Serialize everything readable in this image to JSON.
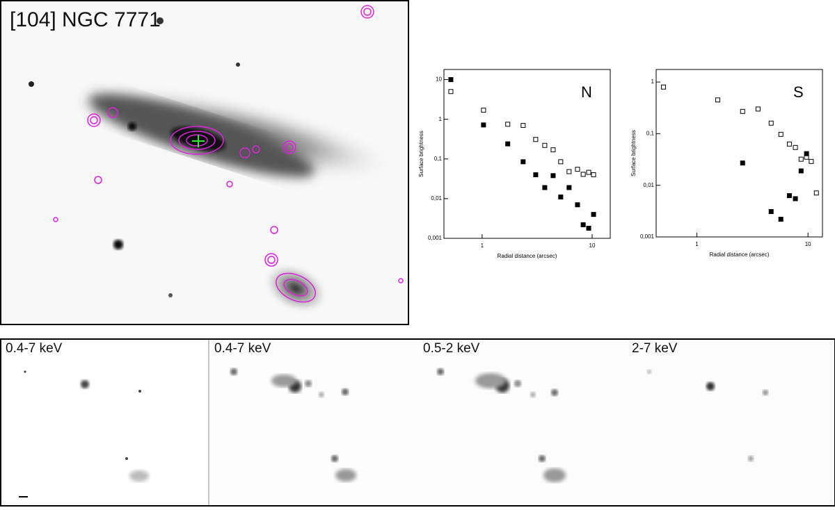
{
  "optical_image": {
    "title": "[104] NGC 7771"
  },
  "xray_panels": [
    {
      "label": "0.4-7 keV"
    },
    {
      "label": "0.4-7 keV"
    },
    {
      "label": "0.5-2 keV"
    },
    {
      "label": "2-7 keV"
    }
  ],
  "chart_data": [
    {
      "type": "scatter",
      "annotation": "N",
      "x_label": "Radial distance (arcsec)",
      "y_label": "Surface brightness",
      "xscale": "log",
      "yscale": "log",
      "xlim": [
        0.45,
        14.6
      ],
      "ylim": [
        0.001,
        18
      ],
      "xticks": [
        1,
        10
      ],
      "yticks": [
        10,
        1,
        {
          "value": 0.1,
          "label": "0,1"
        },
        {
          "value": 0.01,
          "label": "0,01"
        },
        {
          "value": 0.001,
          "label": "0,001"
        }
      ],
      "series": [
        {
          "color": "#000000",
          "filled": false,
          "x": [
            0.52,
            1.03,
            1.71,
            2.36,
            3.07,
            3.71,
            4.42,
            5.18,
            6.17,
            7.36,
            8.29,
            9.3,
            10.3
          ],
          "values": [
            5,
            1.7,
            0.75,
            0.7,
            0.31,
            0.22,
            0.17,
            0.085,
            0.048,
            0.055,
            0.041,
            0.046,
            0.04
          ]
        },
        {
          "color": "#000000",
          "filled": true,
          "x": [
            0.52,
            1.03,
            1.71,
            2.36,
            3.07,
            3.71,
            4.42,
            5.18,
            6.17,
            7.36,
            8.29,
            9.3,
            10.3
          ],
          "values": [
            10,
            0.72,
            0.24,
            0.085,
            0.04,
            0.019,
            0.038,
            0.011,
            0.019,
            0.007,
            0.0022,
            0.0018,
            0.004
          ]
        }
      ]
    },
    {
      "type": "scatter",
      "annotation": "S",
      "x_label": "Radial distance (arcsec)",
      "y_label": "Surface brightness",
      "xscale": "log",
      "yscale": "log",
      "xlim": [
        0.43,
        13.5
      ],
      "ylim": [
        0.001,
        1.75
      ],
      "xticks": [
        1,
        10
      ],
      "yticks": [
        1,
        {
          "value": 0.1,
          "label": "0,1"
        },
        {
          "value": 0.01,
          "label": "0,01"
        },
        {
          "value": 0.001,
          "label": "0,001"
        }
      ],
      "series": [
        {
          "color": "#000000",
          "filled": false,
          "x": [
            0.5,
            1.54,
            2.58,
            3.55,
            4.66,
            5.7,
            6.8,
            7.7,
            8.67,
            9.7,
            10.7,
            11.9
          ],
          "values": [
            0.8,
            0.45,
            0.27,
            0.3,
            0.16,
            0.097,
            0.063,
            0.054,
            0.032,
            0.035,
            0.029,
            0.0071
          ]
        },
        {
          "color": "#000000",
          "filled": true,
          "x": [
            2.58,
            4.66,
            5.7,
            6.8,
            7.7,
            8.67,
            9.7
          ],
          "values": [
            0.027,
            0.0031,
            0.0022,
            0.0063,
            0.0055,
            0.019,
            0.041
          ]
        }
      ]
    }
  ]
}
